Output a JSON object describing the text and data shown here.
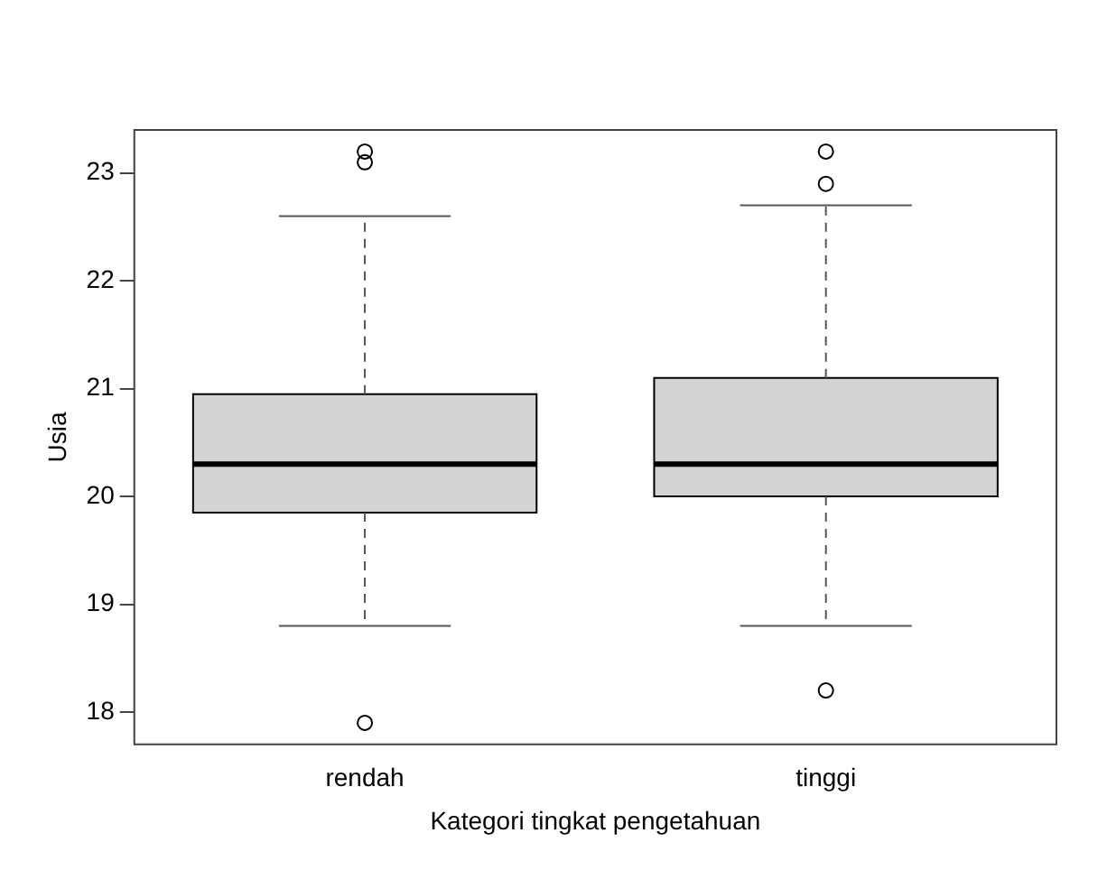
{
  "chart_data": {
    "type": "box",
    "xlabel": "Kategori tingkat pengetahuan",
    "ylabel": "Usia",
    "categories": [
      "rendah",
      "tinggi"
    ],
    "color": "#d3d3d3",
    "boxes": [
      {
        "low": 18.8,
        "q1": 19.85,
        "median": 20.3,
        "q3": 20.95,
        "high": 22.6,
        "outliers": [
          23.2,
          23.1,
          17.9
        ]
      },
      {
        "low": 18.8,
        "q1": 20.0,
        "median": 20.3,
        "q3": 21.1,
        "high": 22.7,
        "outliers": [
          23.2,
          22.9,
          18.2
        ]
      }
    ],
    "ylim": [
      17.7,
      23.4
    ],
    "yticks": [
      18,
      19,
      20,
      21,
      22,
      23
    ],
    "grid": false
  }
}
